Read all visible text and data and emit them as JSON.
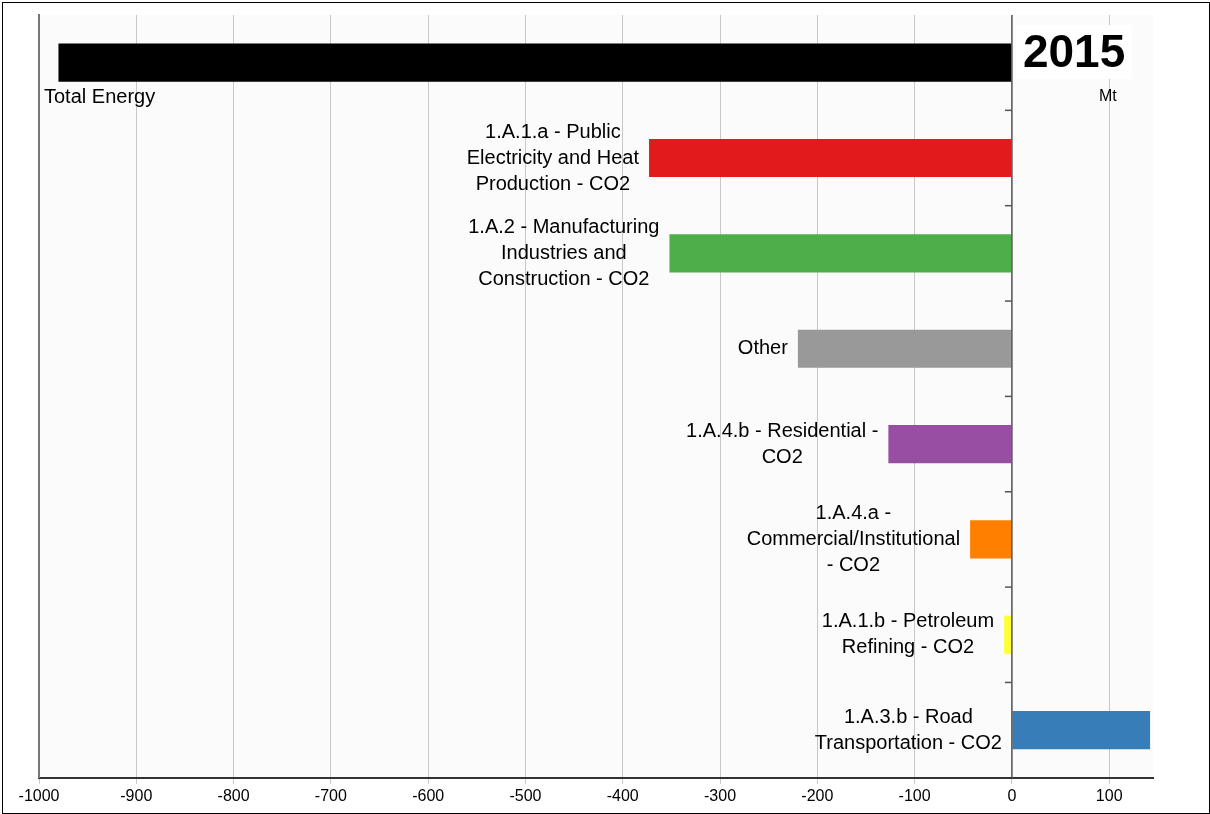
{
  "chart_data": {
    "type": "bar",
    "orientation": "horizontal",
    "title": "2015",
    "xlabel": "Mt",
    "categories": [
      "Total Energy",
      "1.A.1.a - Public Electricity and Heat Production - CO2",
      "1.A.2 - Manufacturing Industries and Construction - CO2",
      "Other",
      "1.A.4.b - Residential - CO2",
      "1.A.4.a - Commercial/Institutional - CO2",
      "1.A.1.b - Petroleum Refining - CO2",
      "1.A.3.b - Road Transportation - CO2"
    ],
    "values": [
      -980,
      -373,
      -352,
      -220,
      -127,
      -43,
      -8,
      142
    ],
    "colors": [
      "#000000",
      "#e31a1c",
      "#4daf4a",
      "#999999",
      "#984ea3",
      "#ff7f00",
      "#ffff33",
      "#377eb8"
    ],
    "xlim": [
      -1000,
      145
    ],
    "xticks": [
      -1000,
      -900,
      -800,
      -700,
      -600,
      -500,
      -400,
      -300,
      -200,
      -100,
      0,
      100
    ],
    "grid": "x"
  }
}
